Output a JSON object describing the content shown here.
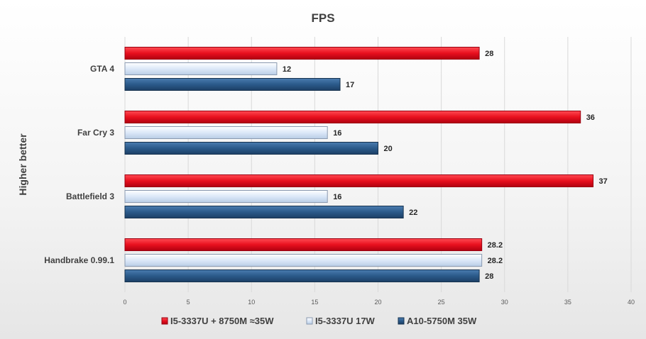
{
  "chart_data": {
    "type": "bar",
    "orientation": "horizontal",
    "title": "FPS",
    "ylabel": "Higher better",
    "xlabel": "",
    "categories": [
      "GTA 4",
      "Far Cry 3",
      "Battlefield 3",
      "Handbrake 0.99.1"
    ],
    "series": [
      {
        "name": "I5-3337U + 8750M ≈35W",
        "values": [
          28,
          36,
          37,
          28.2
        ],
        "color": "#e8101e"
      },
      {
        "name": "I5-3337U 17W",
        "values": [
          12,
          16,
          16,
          28.2
        ],
        "color": "#dce8f8"
      },
      {
        "name": "A10-5750M 35W",
        "values": [
          17,
          20,
          22,
          28
        ],
        "color": "#2b5a8a"
      }
    ],
    "xlim": [
      0,
      40
    ],
    "xticks": [
      0,
      5,
      10,
      15,
      20,
      25,
      30,
      35,
      40
    ],
    "grid": true,
    "legend_position": "bottom"
  }
}
